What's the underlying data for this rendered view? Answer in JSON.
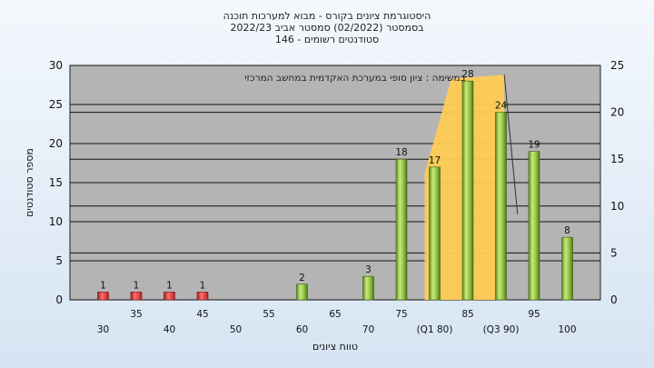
{
  "chart_data": {
    "type": "bar",
    "title_lines": [
      "היסטוגרמת ציונים בקורס - מבוא למערכות תוכנה",
      "בסמסטר  (02/2022)  סמסטר אביב 2022/23",
      "סטודנטים רשומים - 146"
    ],
    "annotation": "במשימה : ציון סופי במערכת האקדמית במחשב המרכזי",
    "xlabel": "טווח ציונים",
    "ylabel": "מספר סטודנטים",
    "x_tick_labels": [
      "30",
      "35",
      "40",
      "45",
      "50",
      "55",
      "60",
      "65",
      "70",
      "75",
      "(Q1 80)",
      "85",
      "(Q3 90)",
      "95",
      "100"
    ],
    "categories": [
      "30",
      "35",
      "40",
      "45",
      "60",
      "70",
      "75",
      "80",
      "85",
      "90",
      "95",
      "100"
    ],
    "values": [
      1,
      1,
      1,
      1,
      2,
      3,
      18,
      17,
      28,
      24,
      19,
      8
    ],
    "bar_colors": [
      "red",
      "red",
      "red",
      "red",
      "green",
      "green",
      "green",
      "green",
      "green",
      "green",
      "green",
      "green"
    ],
    "iqr_band": {
      "from": 80,
      "to": 90
    },
    "ylim_left": [
      0,
      30
    ],
    "yticks_left": [
      0,
      5,
      10,
      15,
      20,
      25,
      30
    ],
    "ylim_right": [
      0,
      25
    ],
    "yticks_right": [
      0,
      5,
      10,
      15,
      20,
      25
    ],
    "grid": true,
    "colors": {
      "plot_bg": "#b4b4b4",
      "green_bar": "#8fbf3f",
      "red_bar": "#dd3333",
      "band": "#ffcc55"
    }
  }
}
